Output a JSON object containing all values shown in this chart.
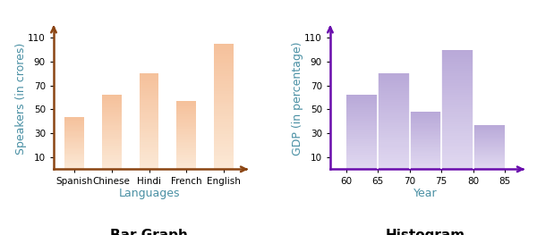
{
  "bar_categories": [
    "Spanish",
    "Chinese",
    "Hindi",
    "French",
    "English"
  ],
  "bar_values": [
    44,
    62,
    80,
    57,
    105
  ],
  "bar_ylabel": "Speakers (in crores)",
  "bar_xlabel": "Languages",
  "bar_title": "Bar Graph",
  "bar_yticks": [
    10,
    30,
    50,
    70,
    90,
    110
  ],
  "bar_ylim": [
    0,
    118
  ],
  "bar_axis_color": "#8B4513",
  "hist_edges": [
    60,
    65,
    70,
    75,
    80,
    85
  ],
  "hist_values": [
    62,
    80,
    48,
    100,
    37
  ],
  "hist_ylabel": "GDP (in percentage)",
  "hist_xlabel": "Year",
  "hist_title": "Histogram",
  "hist_yticks": [
    10,
    30,
    50,
    70,
    90,
    110
  ],
  "hist_ylim": [
    0,
    118
  ],
  "hist_xticks": [
    60,
    65,
    70,
    75,
    80,
    85
  ],
  "hist_axis_color": "#6A0DAD",
  "ylabel_color": "#4A90A4",
  "xlabel_color": "#4A90A4",
  "title_color": "#000000",
  "title_fontsize": 11,
  "axis_label_fontsize": 9,
  "tick_fontsize": 7.5,
  "bar_face_color_top": "#F5C09A",
  "bar_face_color_bottom": "#FBE8D5",
  "hist_face_color_top": "#B8A8D8",
  "hist_face_color_bottom": "#E0D8F0"
}
